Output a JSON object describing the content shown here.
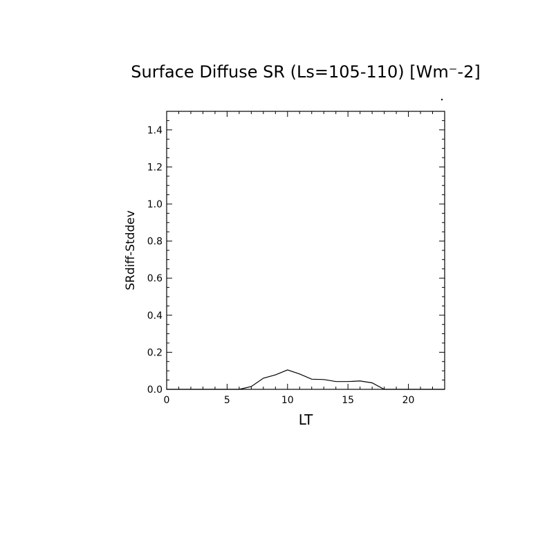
{
  "chart_data": {
    "type": "line",
    "title": "Surface Diffuse SR (Ls=105-110) [Wm⁻-2]",
    "xlabel": "LT",
    "ylabel": "SRdiff-Stddev",
    "xlim": [
      0,
      23
    ],
    "ylim": [
      0.0,
      1.5
    ],
    "xticks": [
      0,
      5,
      10,
      15,
      20
    ],
    "xtick_labels": [
      "0",
      "5",
      "10",
      "15",
      "20"
    ],
    "yticks": [
      0.0,
      0.2,
      0.4,
      0.6,
      0.8,
      1.0,
      1.2,
      1.4
    ],
    "ytick_labels": [
      "0.0",
      "0.2",
      "0.4",
      "0.6",
      "0.8",
      "1.0",
      "1.2",
      "1.4"
    ],
    "grid": false,
    "series": [
      {
        "x": [
          0,
          1,
          2,
          3,
          4,
          5,
          6,
          7,
          8,
          9,
          10,
          11,
          12,
          13,
          14,
          15,
          16,
          17,
          18,
          19,
          20,
          21,
          22,
          23
        ],
        "values": [
          0.0,
          0.0,
          0.0,
          0.0,
          0.0,
          0.0,
          0.0,
          0.015,
          0.06,
          0.078,
          0.105,
          0.083,
          0.055,
          0.053,
          0.042,
          0.042,
          0.045,
          0.035,
          0.0,
          0.0,
          0.0,
          0.0,
          0.0,
          0.0
        ],
        "color": "#000000"
      }
    ]
  }
}
